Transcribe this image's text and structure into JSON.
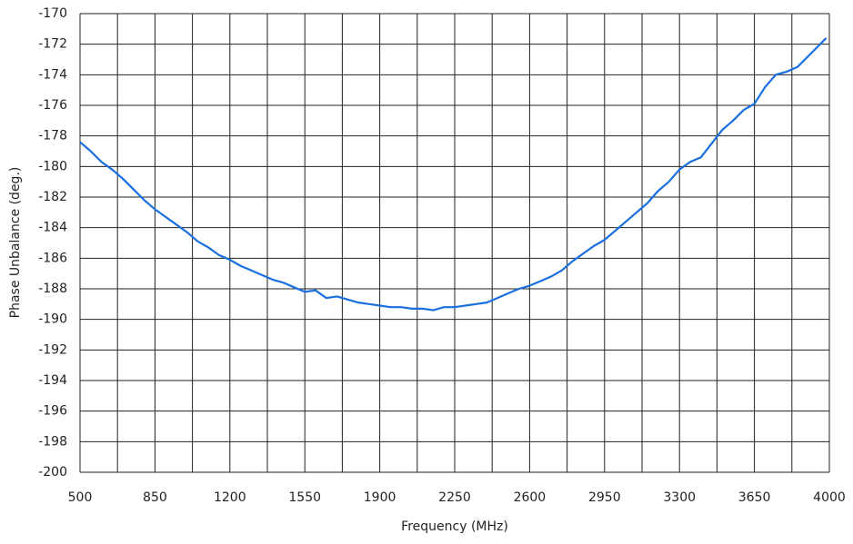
{
  "chart_data": {
    "type": "line",
    "x_label": "Frequency (MHz)",
    "y_label": "Phase Unbalance (deg.)",
    "xlim": [
      500,
      4000
    ],
    "xticks": [
      500,
      850,
      1200,
      1550,
      1900,
      2250,
      2600,
      2950,
      3300,
      3650,
      4000
    ],
    "x_minor_ticks": [
      675,
      1025,
      1375,
      1725,
      2075,
      2425,
      2775,
      3125,
      3475,
      3825
    ],
    "ylim": [
      -200,
      -170
    ],
    "yticks": [
      -200,
      -198,
      -196,
      -194,
      -192,
      -190,
      -188,
      -186,
      -184,
      -182,
      -180,
      -178,
      -176,
      -174,
      -172,
      -170
    ],
    "grid": true,
    "x": [
      500,
      550,
      600,
      650,
      700,
      750,
      800,
      850,
      900,
      950,
      1000,
      1050,
      1100,
      1150,
      1200,
      1250,
      1300,
      1350,
      1400,
      1450,
      1500,
      1550,
      1600,
      1650,
      1700,
      1750,
      1800,
      1850,
      1900,
      1950,
      2000,
      2050,
      2100,
      2150,
      2200,
      2250,
      2300,
      2350,
      2400,
      2450,
      2500,
      2550,
      2600,
      2650,
      2700,
      2750,
      2800,
      2850,
      2900,
      2950,
      3000,
      3050,
      3100,
      3150,
      3200,
      3250,
      3300,
      3350,
      3400,
      3450,
      3500,
      3550,
      3600,
      3650,
      3700,
      3750,
      3800,
      3850,
      3900,
      3950,
      3985
    ],
    "series": [
      {
        "name": "Phase Unbalance",
        "color": "#1a6fe0",
        "values": [
          -178.4,
          -179,
          -179.7,
          -180.2,
          -180.8,
          -181.5,
          -182.2,
          -182.8,
          -183.3,
          -183.8,
          -184.3,
          -184.9,
          -185.3,
          -185.8,
          -186.1,
          -186.5,
          -186.8,
          -187.1,
          -187.4,
          -187.6,
          -187.9,
          -188.2,
          -188.1,
          -188.6,
          -188.5,
          -188.7,
          -188.9,
          -189.0,
          -189.1,
          -189.2,
          -189.2,
          -189.3,
          -189.3,
          -189.4,
          -189.2,
          -189.2,
          -189.1,
          -189.0,
          -188.9,
          -188.6,
          -188.3,
          -188.0,
          -187.8,
          -187.5,
          -187.2,
          -186.8,
          -186.2,
          -185.7,
          -185.2,
          -184.8,
          -184.2,
          -183.6,
          -183.0,
          -182.4,
          -181.6,
          -181.0,
          -180.2,
          -179.7,
          -179.4,
          -178.5,
          -177.6,
          -177.0,
          -176.3,
          -175.9,
          -174.8,
          -174.0,
          -173.8,
          -173.5,
          -172.8,
          -172.1,
          -171.6
        ]
      }
    ]
  }
}
